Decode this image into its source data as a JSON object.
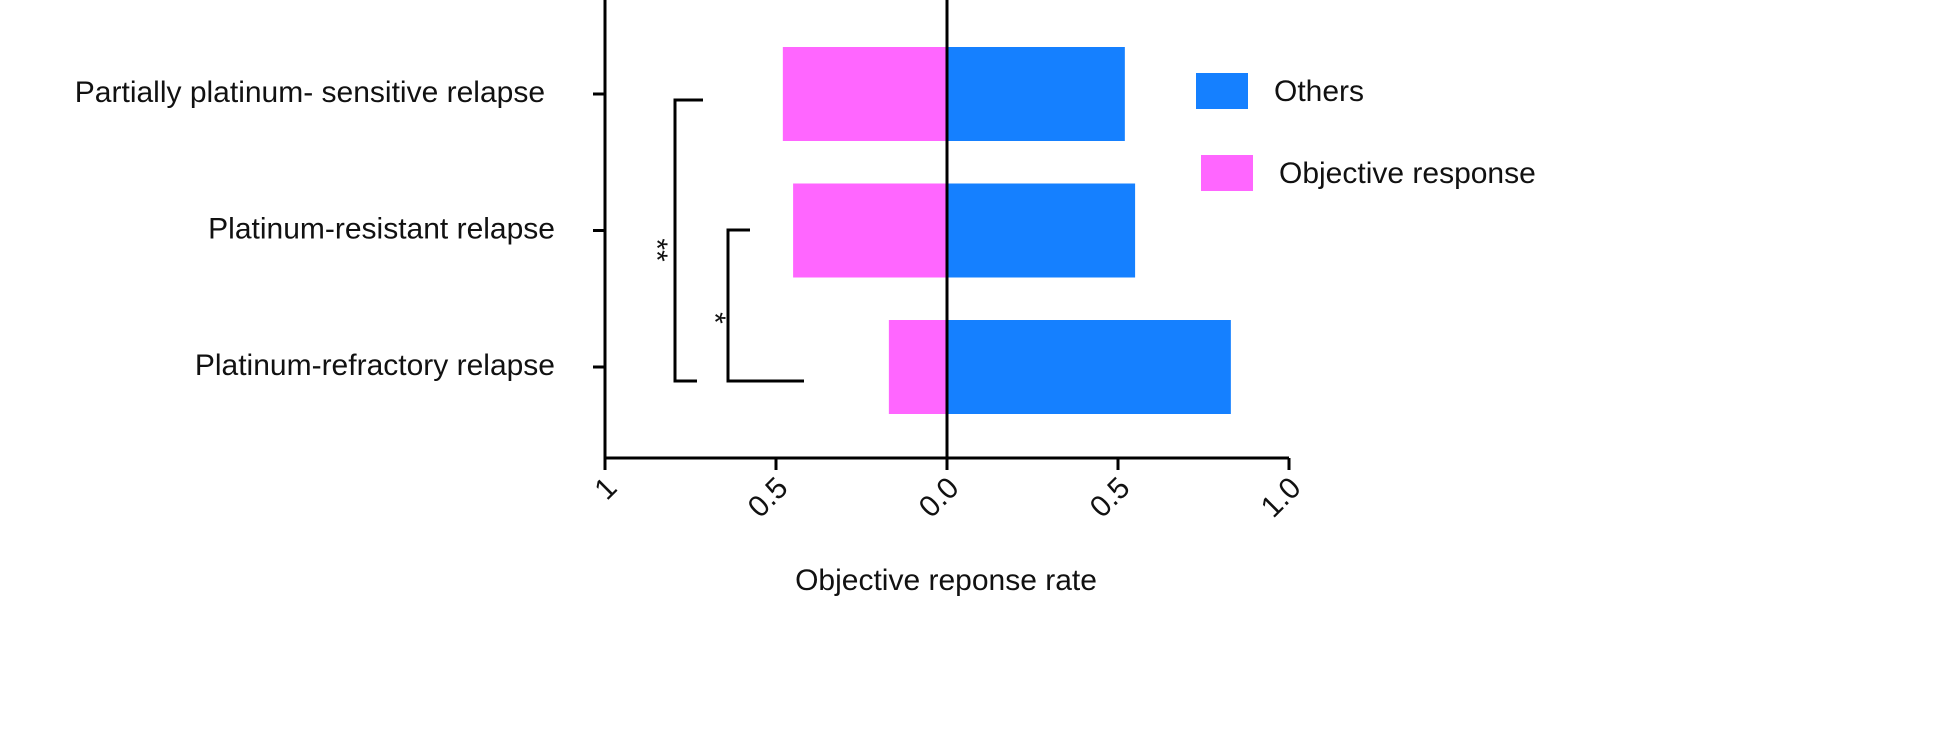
{
  "chart_data": {
    "type": "diverging-bar",
    "x_label": "Objective reponse rate",
    "categories": [
      "Partially platinum- sensitive relapse",
      "Platinum-resistant relapse",
      "Platinum-refractory relapse"
    ],
    "series": [
      {
        "name": "Others",
        "color": "#1580ff",
        "values": [
          0.52,
          0.55,
          0.83
        ]
      },
      {
        "name": "Objective response",
        "color": "#ff66ff",
        "values": [
          -0.48,
          -0.45,
          -0.17
        ]
      }
    ],
    "xlim": [
      -1,
      1
    ],
    "xticks": [
      {
        "value": -1,
        "label": "1"
      },
      {
        "value": -0.5,
        "label": "0.5"
      },
      {
        "value": 0,
        "label": "0.0"
      },
      0.5,
      {
        "value": 1,
        "label": "1.0"
      }
    ],
    "annotations": [
      "**",
      "*"
    ]
  }
}
